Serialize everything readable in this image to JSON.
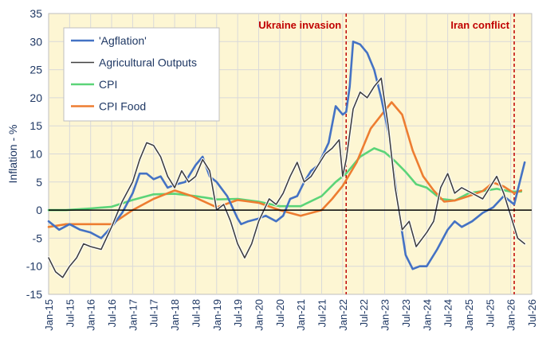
{
  "chart_data": {
    "type": "line",
    "ylabel": "Inflation - %",
    "ylim": [
      -15,
      35
    ],
    "yticks": [
      "-15",
      "-10",
      "-5",
      "0",
      "5",
      "10",
      "15",
      "20",
      "25",
      "30",
      "35"
    ],
    "xlim": [
      "2015-01",
      "2026-07"
    ],
    "xticks": [
      "Jan-15",
      "Jul-15",
      "Jan-16",
      "Jul-16",
      "Jan-17",
      "Jul-17",
      "Jan-18",
      "Jul-18",
      "Jan-19",
      "Jul-19",
      "Jan-20",
      "Jul-20",
      "Jan-21",
      "Jul-21",
      "Jan-22",
      "Jul-22",
      "Jan-23",
      "Jul-23",
      "Jan-24",
      "Jul-24",
      "Jan-25",
      "Jul-25",
      "Jan-26",
      "Jul-26"
    ],
    "grid": true,
    "legend_position": "top-left",
    "colors": {
      "plot_background": "#fdf6d3",
      "grid": "#d9d9d9",
      "event_line": "#c00000"
    },
    "annotations": [
      {
        "label": "Ukraine invasion",
        "x": "2022-02"
      },
      {
        "label": "Iran conflict",
        "x": "2026-02"
      }
    ],
    "series": [
      {
        "name": "'Agflation'",
        "color": "#4472c4",
        "points": [
          [
            "2015-01",
            -2
          ],
          [
            "2015-04",
            -3.5
          ],
          [
            "2015-07",
            -2.5
          ],
          [
            "2015-10",
            -3.5
          ],
          [
            "2016-01",
            -4
          ],
          [
            "2016-04",
            -5
          ],
          [
            "2016-07",
            -3
          ],
          [
            "2016-10",
            -0.5
          ],
          [
            "2017-01",
            3
          ],
          [
            "2017-03",
            6.5
          ],
          [
            "2017-05",
            6.5
          ],
          [
            "2017-07",
            5.5
          ],
          [
            "2017-09",
            6
          ],
          [
            "2017-11",
            4
          ],
          [
            "2018-01",
            4.5
          ],
          [
            "2018-04",
            5
          ],
          [
            "2018-07",
            8
          ],
          [
            "2018-09",
            9.5
          ],
          [
            "2018-11",
            6
          ],
          [
            "2019-01",
            5
          ],
          [
            "2019-04",
            2.5
          ],
          [
            "2019-07",
            -1.5
          ],
          [
            "2019-08",
            -2.5
          ],
          [
            "2019-10",
            -2
          ],
          [
            "2020-01",
            -1.5
          ],
          [
            "2020-03",
            -1
          ],
          [
            "2020-06",
            -2
          ],
          [
            "2020-08",
            -1
          ],
          [
            "2020-10",
            2
          ],
          [
            "2020-12",
            2.5
          ],
          [
            "2021-02",
            5
          ],
          [
            "2021-04",
            7
          ],
          [
            "2021-06",
            8
          ],
          [
            "2021-09",
            12
          ],
          [
            "2021-11",
            18.5
          ],
          [
            "2022-01",
            17
          ],
          [
            "2022-02",
            17.5
          ],
          [
            "2022-03",
            22
          ],
          [
            "2022-04",
            30
          ],
          [
            "2022-06",
            29.5
          ],
          [
            "2022-08",
            28
          ],
          [
            "2022-10",
            25
          ],
          [
            "2022-12",
            20
          ],
          [
            "2023-02",
            14
          ],
          [
            "2023-03",
            10
          ],
          [
            "2023-05",
            0
          ],
          [
            "2023-07",
            -8
          ],
          [
            "2023-09",
            -10.5
          ],
          [
            "2023-11",
            -10
          ],
          [
            "2024-01",
            -10
          ],
          [
            "2024-04",
            -7
          ],
          [
            "2024-07",
            -3.5
          ],
          [
            "2024-09",
            -2
          ],
          [
            "2024-11",
            -3
          ],
          [
            "2025-02",
            -2
          ],
          [
            "2025-05",
            -0.5
          ],
          [
            "2025-08",
            0.5
          ],
          [
            "2025-11",
            2.5
          ],
          [
            "2026-01",
            1.5
          ],
          [
            "2026-02",
            1
          ],
          [
            "2026-04",
            6
          ],
          [
            "2026-05",
            8.5
          ]
        ]
      },
      {
        "name": "Agricultural Outputs",
        "color": "#404040",
        "points": [
          [
            "2015-01",
            -8.5
          ],
          [
            "2015-03",
            -11
          ],
          [
            "2015-05",
            -12
          ],
          [
            "2015-07",
            -10
          ],
          [
            "2015-09",
            -8.5
          ],
          [
            "2015-11",
            -6
          ],
          [
            "2016-01",
            -6.5
          ],
          [
            "2016-04",
            -7
          ],
          [
            "2016-07",
            -3
          ],
          [
            "2016-10",
            1.5
          ],
          [
            "2017-01",
            5
          ],
          [
            "2017-03",
            9
          ],
          [
            "2017-05",
            12
          ],
          [
            "2017-07",
            11.5
          ],
          [
            "2017-09",
            9.5
          ],
          [
            "2017-11",
            6
          ],
          [
            "2018-01",
            4
          ],
          [
            "2018-03",
            7
          ],
          [
            "2018-05",
            5
          ],
          [
            "2018-07",
            6
          ],
          [
            "2018-09",
            9
          ],
          [
            "2018-11",
            7
          ],
          [
            "2019-01",
            0
          ],
          [
            "2019-03",
            1
          ],
          [
            "2019-05",
            -2
          ],
          [
            "2019-07",
            -6
          ],
          [
            "2019-09",
            -8.5
          ],
          [
            "2019-11",
            -6
          ],
          [
            "2020-01",
            -2
          ],
          [
            "2020-04",
            2
          ],
          [
            "2020-06",
            1
          ],
          [
            "2020-08",
            3
          ],
          [
            "2020-10",
            6
          ],
          [
            "2020-12",
            8.5
          ],
          [
            "2021-02",
            5
          ],
          [
            "2021-04",
            6
          ],
          [
            "2021-06",
            8
          ],
          [
            "2021-08",
            10
          ],
          [
            "2021-10",
            11
          ],
          [
            "2021-12",
            12.5
          ],
          [
            "2022-01",
            6
          ],
          [
            "2022-02",
            9
          ],
          [
            "2022-04",
            18
          ],
          [
            "2022-06",
            21
          ],
          [
            "2022-08",
            20
          ],
          [
            "2022-10",
            22
          ],
          [
            "2022-12",
            23.5
          ],
          [
            "2023-02",
            15
          ],
          [
            "2023-04",
            4
          ],
          [
            "2023-06",
            -3.5
          ],
          [
            "2023-08",
            -2
          ],
          [
            "2023-10",
            -6.5
          ],
          [
            "2024-01",
            -4
          ],
          [
            "2024-03",
            -2
          ],
          [
            "2024-05",
            4
          ],
          [
            "2024-07",
            6.5
          ],
          [
            "2024-09",
            3
          ],
          [
            "2024-11",
            4
          ],
          [
            "2025-02",
            3
          ],
          [
            "2025-05",
            2
          ],
          [
            "2025-07",
            4
          ],
          [
            "2025-09",
            6
          ],
          [
            "2025-11",
            3
          ],
          [
            "2026-01",
            -1
          ],
          [
            "2026-03",
            -5
          ],
          [
            "2026-05",
            -6
          ]
        ]
      },
      {
        "name": "CPI",
        "color": "#5bd478",
        "points": [
          [
            "2015-01",
            0
          ],
          [
            "2015-06",
            0
          ],
          [
            "2016-01",
            0.3
          ],
          [
            "2016-07",
            0.6
          ],
          [
            "2017-01",
            1.8
          ],
          [
            "2017-07",
            2.8
          ],
          [
            "2018-01",
            2.9
          ],
          [
            "2018-07",
            2.5
          ],
          [
            "2019-01",
            1.9
          ],
          [
            "2019-07",
            2
          ],
          [
            "2020-01",
            1.5
          ],
          [
            "2020-07",
            0.7
          ],
          [
            "2021-01",
            0.7
          ],
          [
            "2021-07",
            2.5
          ],
          [
            "2021-11",
            5
          ],
          [
            "2022-02",
            6.5
          ],
          [
            "2022-06",
            9.5
          ],
          [
            "2022-10",
            11
          ],
          [
            "2023-01",
            10.3
          ],
          [
            "2023-04",
            8.7
          ],
          [
            "2023-07",
            6.8
          ],
          [
            "2023-10",
            4.6
          ],
          [
            "2024-01",
            4
          ],
          [
            "2024-05",
            2
          ],
          [
            "2024-09",
            1.7
          ],
          [
            "2025-01",
            3
          ],
          [
            "2025-05",
            3.4
          ],
          [
            "2025-09",
            3.8
          ],
          [
            "2026-01",
            3.3
          ],
          [
            "2026-04",
            3.3
          ]
        ]
      },
      {
        "name": "CPI Food",
        "color": "#ed7d31",
        "points": [
          [
            "2015-01",
            -3
          ],
          [
            "2015-06",
            -2.5
          ],
          [
            "2016-01",
            -2.5
          ],
          [
            "2016-07",
            -2.5
          ],
          [
            "2017-01",
            0
          ],
          [
            "2017-07",
            2
          ],
          [
            "2018-01",
            3.5
          ],
          [
            "2018-06",
            2.5
          ],
          [
            "2019-01",
            0.5
          ],
          [
            "2019-07",
            1.8
          ],
          [
            "2020-01",
            1.3
          ],
          [
            "2020-07",
            0
          ],
          [
            "2021-01",
            -1
          ],
          [
            "2021-07",
            0
          ],
          [
            "2021-10",
            2
          ],
          [
            "2022-01",
            4.3
          ],
          [
            "2022-05",
            8.5
          ],
          [
            "2022-09",
            14.5
          ],
          [
            "2022-12",
            16.9
          ],
          [
            "2023-03",
            19.2
          ],
          [
            "2023-06",
            17
          ],
          [
            "2023-09",
            10.6
          ],
          [
            "2023-12",
            6
          ],
          [
            "2024-03",
            3.5
          ],
          [
            "2024-06",
            1.5
          ],
          [
            "2024-09",
            1.7
          ],
          [
            "2025-01",
            2.5
          ],
          [
            "2025-05",
            3.4
          ],
          [
            "2025-08",
            4.9
          ],
          [
            "2025-11",
            4.2
          ],
          [
            "2026-02",
            3
          ],
          [
            "2026-04",
            3.5
          ]
        ]
      }
    ]
  }
}
